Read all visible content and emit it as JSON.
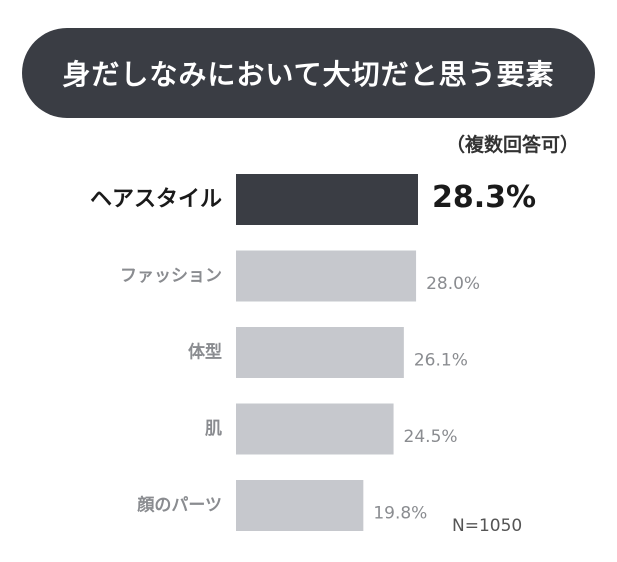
{
  "header": {
    "title": "身だしなみにおいて大切だと思う要素"
  },
  "subtitle_note": "（複数回答可）",
  "sample_size": "N=1050",
  "colors": {
    "highlight": "#3a3d44",
    "bar": "#c6c8cd",
    "highlight_text": "#1a1a1a",
    "muted_text": "#8a8c90"
  },
  "chart_data": {
    "type": "bar",
    "orientation": "horizontal",
    "categories": [
      "ヘアスタイル",
      "ファッション",
      "体型",
      "肌",
      "顔のパーツ"
    ],
    "values": [
      28.3,
      28.0,
      26.1,
      24.5,
      19.8
    ],
    "value_labels": [
      "28.3%",
      "28.0%",
      "26.1%",
      "24.5%",
      "19.8%"
    ],
    "highlight_index": 0,
    "xlim": [
      0,
      28.3
    ],
    "grid": false
  }
}
